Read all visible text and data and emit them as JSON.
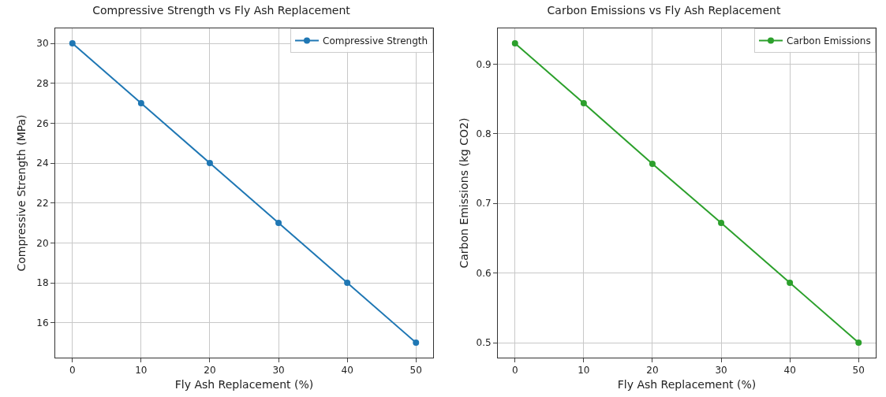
{
  "chart_data": [
    {
      "type": "line",
      "title": "Compressive Strength vs Fly Ash Replacement",
      "xlabel": "Fly Ash Replacement (%)",
      "ylabel": "Compressive Strength (MPa)",
      "x": [
        0,
        10,
        20,
        30,
        40,
        50
      ],
      "series": [
        {
          "name": "Compressive Strength",
          "color": "#1f77b4",
          "values": [
            30,
            27,
            24,
            21,
            18,
            15
          ]
        }
      ],
      "xlim": [
        -2.5,
        52.5
      ],
      "xticks": [
        0,
        10,
        20,
        30,
        40,
        50
      ],
      "ylim": [
        14.25,
        30.75
      ],
      "yticks": [
        16,
        18,
        20,
        22,
        24,
        26,
        28,
        30
      ],
      "grid": true,
      "legend": "top right",
      "marker": "circle",
      "line_style": "solid"
    },
    {
      "type": "line",
      "title": "Carbon Emissions vs Fly Ash Replacement",
      "xlabel": "Fly Ash Replacement (%)",
      "ylabel": "Carbon Emissions (kg CO2)",
      "x": [
        0,
        10,
        20,
        30,
        40,
        50
      ],
      "series": [
        {
          "name": "Carbon Emissions",
          "color": "#2ca02c",
          "values": [
            0.93,
            0.844,
            0.757,
            0.672,
            0.586,
            0.5
          ]
        }
      ],
      "xlim": [
        -2.5,
        52.5
      ],
      "xticks": [
        0,
        10,
        20,
        30,
        40,
        50
      ],
      "ylim": [
        0.4785,
        0.9515
      ],
      "yticks": [
        0.5,
        0.6,
        0.7,
        0.8,
        0.9
      ],
      "grid": true,
      "legend": "top right",
      "marker": "circle",
      "line_style": "solid"
    }
  ]
}
